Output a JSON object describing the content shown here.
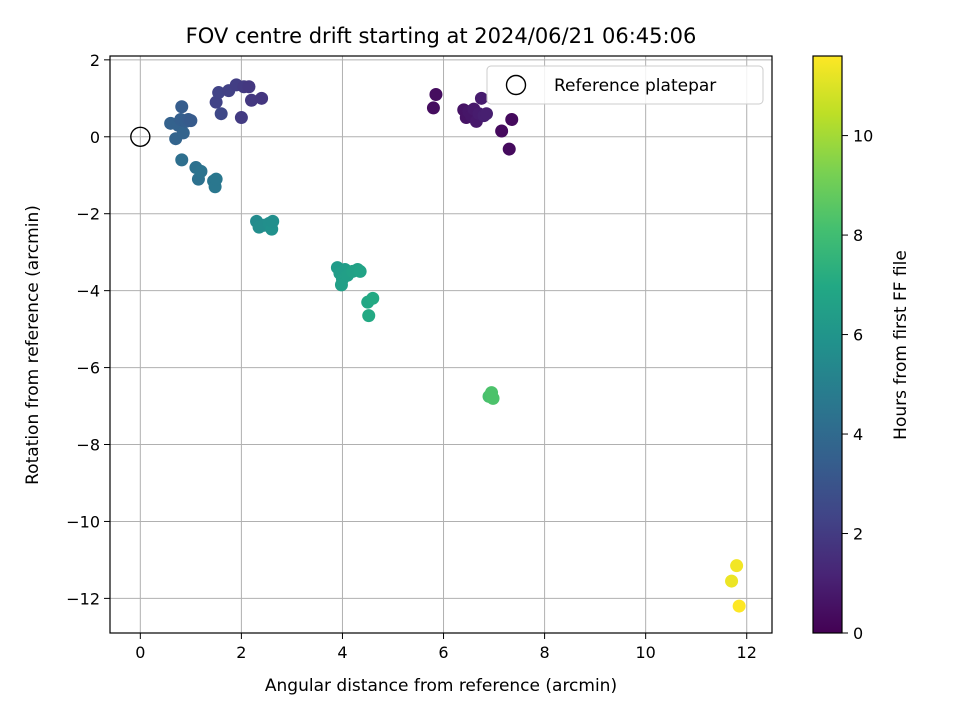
{
  "chart_data": {
    "type": "scatter",
    "title": "FOV centre drift starting at 2024/06/21 06:45:06",
    "xlabel": "Angular distance from reference (arcmin)",
    "ylabel": "Rotation from reference (arcmin)",
    "xlim": [
      -0.6,
      12.5
    ],
    "ylim": [
      -12.9,
      2.1
    ],
    "x_ticks": [
      0,
      2,
      4,
      6,
      8,
      10,
      12
    ],
    "y_ticks": [
      2,
      0,
      -2,
      -4,
      -6,
      -8,
      -10,
      -12
    ],
    "grid": true,
    "legend": {
      "position": "top-right",
      "entries": [
        "Reference platepar"
      ]
    },
    "reference_point": {
      "x": 0,
      "y": 0
    },
    "colorbar": {
      "label": "Hours from first FF file",
      "range": [
        0,
        11.6
      ],
      "ticks": [
        0,
        2,
        4,
        6,
        8,
        10
      ],
      "colormap": "viridis"
    },
    "points": [
      {
        "x": 5.8,
        "y": 0.75,
        "t": 0.4
      },
      {
        "x": 5.85,
        "y": 1.1,
        "t": 0.4
      },
      {
        "x": 6.4,
        "y": 0.7,
        "t": 0.6
      },
      {
        "x": 6.45,
        "y": 0.5,
        "t": 0.6
      },
      {
        "x": 6.5,
        "y": 0.65,
        "t": 0.7
      },
      {
        "x": 6.55,
        "y": 0.55,
        "t": 0.7
      },
      {
        "x": 6.6,
        "y": 0.72,
        "t": 0.8
      },
      {
        "x": 6.65,
        "y": 0.4,
        "t": 0.8
      },
      {
        "x": 6.7,
        "y": 0.6,
        "t": 0.9
      },
      {
        "x": 6.75,
        "y": 1.0,
        "t": 0.9
      },
      {
        "x": 6.8,
        "y": 0.55,
        "t": 1.0
      },
      {
        "x": 6.85,
        "y": 0.6,
        "t": 1.0
      },
      {
        "x": 7.15,
        "y": 0.15,
        "t": 0.3
      },
      {
        "x": 7.3,
        "y": -0.32,
        "t": 0.3
      },
      {
        "x": 7.35,
        "y": 0.45,
        "t": 0.3
      },
      {
        "x": 1.5,
        "y": 0.9,
        "t": 2.3
      },
      {
        "x": 1.55,
        "y": 1.15,
        "t": 2.3
      },
      {
        "x": 1.6,
        "y": 0.6,
        "t": 2.5
      },
      {
        "x": 1.75,
        "y": 1.2,
        "t": 2.2
      },
      {
        "x": 1.9,
        "y": 1.35,
        "t": 2.1
      },
      {
        "x": 2.0,
        "y": 0.5,
        "t": 2.0
      },
      {
        "x": 2.05,
        "y": 1.3,
        "t": 2.0
      },
      {
        "x": 2.15,
        "y": 1.3,
        "t": 1.9
      },
      {
        "x": 2.2,
        "y": 0.95,
        "t": 1.9
      },
      {
        "x": 2.4,
        "y": 1.0,
        "t": 1.8
      },
      {
        "x": 0.6,
        "y": 0.35,
        "t": 3.6
      },
      {
        "x": 0.7,
        "y": -0.05,
        "t": 3.7
      },
      {
        "x": 0.75,
        "y": 0.3,
        "t": 3.6
      },
      {
        "x": 0.8,
        "y": 0.45,
        "t": 3.5
      },
      {
        "x": 0.82,
        "y": 0.78,
        "t": 3.4
      },
      {
        "x": 0.85,
        "y": 0.1,
        "t": 3.7
      },
      {
        "x": 0.9,
        "y": 0.4,
        "t": 3.5
      },
      {
        "x": 0.95,
        "y": 0.45,
        "t": 3.4
      },
      {
        "x": 1.0,
        "y": 0.42,
        "t": 3.3
      },
      {
        "x": 0.82,
        "y": -0.6,
        "t": 4.2
      },
      {
        "x": 1.1,
        "y": -0.8,
        "t": 4.3
      },
      {
        "x": 1.15,
        "y": -1.1,
        "t": 4.3
      },
      {
        "x": 1.2,
        "y": -0.9,
        "t": 4.4
      },
      {
        "x": 1.45,
        "y": -1.15,
        "t": 4.5
      },
      {
        "x": 1.48,
        "y": -1.3,
        "t": 4.6
      },
      {
        "x": 1.5,
        "y": -1.1,
        "t": 4.6
      },
      {
        "x": 2.3,
        "y": -2.2,
        "t": 5.5
      },
      {
        "x": 2.35,
        "y": -2.35,
        "t": 5.6
      },
      {
        "x": 2.45,
        "y": -2.3,
        "t": 5.6
      },
      {
        "x": 2.55,
        "y": -2.25,
        "t": 5.7
      },
      {
        "x": 2.6,
        "y": -2.4,
        "t": 5.8
      },
      {
        "x": 2.62,
        "y": -2.2,
        "t": 5.7
      },
      {
        "x": 3.9,
        "y": -3.4,
        "t": 6.3
      },
      {
        "x": 3.95,
        "y": -3.55,
        "t": 6.4
      },
      {
        "x": 4.0,
        "y": -3.7,
        "t": 6.5
      },
      {
        "x": 4.05,
        "y": -3.45,
        "t": 6.4
      },
      {
        "x": 3.98,
        "y": -3.85,
        "t": 6.5
      },
      {
        "x": 4.1,
        "y": -3.6,
        "t": 6.5
      },
      {
        "x": 4.2,
        "y": -3.5,
        "t": 6.6
      },
      {
        "x": 4.3,
        "y": -3.45,
        "t": 6.6
      },
      {
        "x": 4.35,
        "y": -3.5,
        "t": 6.7
      },
      {
        "x": 4.5,
        "y": -4.3,
        "t": 6.9
      },
      {
        "x": 4.52,
        "y": -4.65,
        "t": 7.0
      },
      {
        "x": 4.6,
        "y": -4.2,
        "t": 7.0
      },
      {
        "x": 6.9,
        "y": -6.75,
        "t": 8.2
      },
      {
        "x": 6.95,
        "y": -6.65,
        "t": 8.3
      },
      {
        "x": 6.98,
        "y": -6.8,
        "t": 8.3
      },
      {
        "x": 11.7,
        "y": -11.55,
        "t": 11.3
      },
      {
        "x": 11.8,
        "y": -11.15,
        "t": 11.4
      },
      {
        "x": 11.85,
        "y": -12.2,
        "t": 11.6
      }
    ]
  }
}
